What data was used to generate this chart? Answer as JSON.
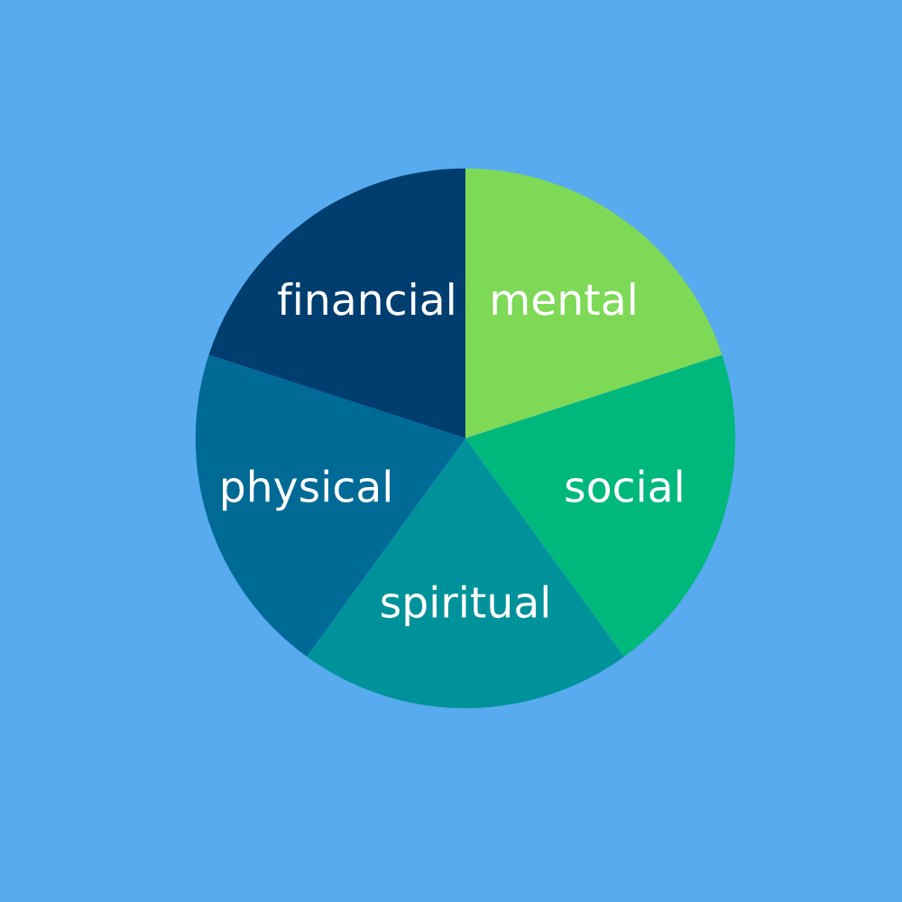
{
  "chart_data": {
    "type": "pie",
    "categories": [
      "mental",
      "social",
      "spiritual",
      "physical",
      "financial"
    ],
    "values": [
      20,
      20,
      20,
      20,
      20
    ],
    "colors": [
      "#7ed957",
      "#00b87c",
      "#00929a",
      "#006a96",
      "#003e6f"
    ]
  }
}
